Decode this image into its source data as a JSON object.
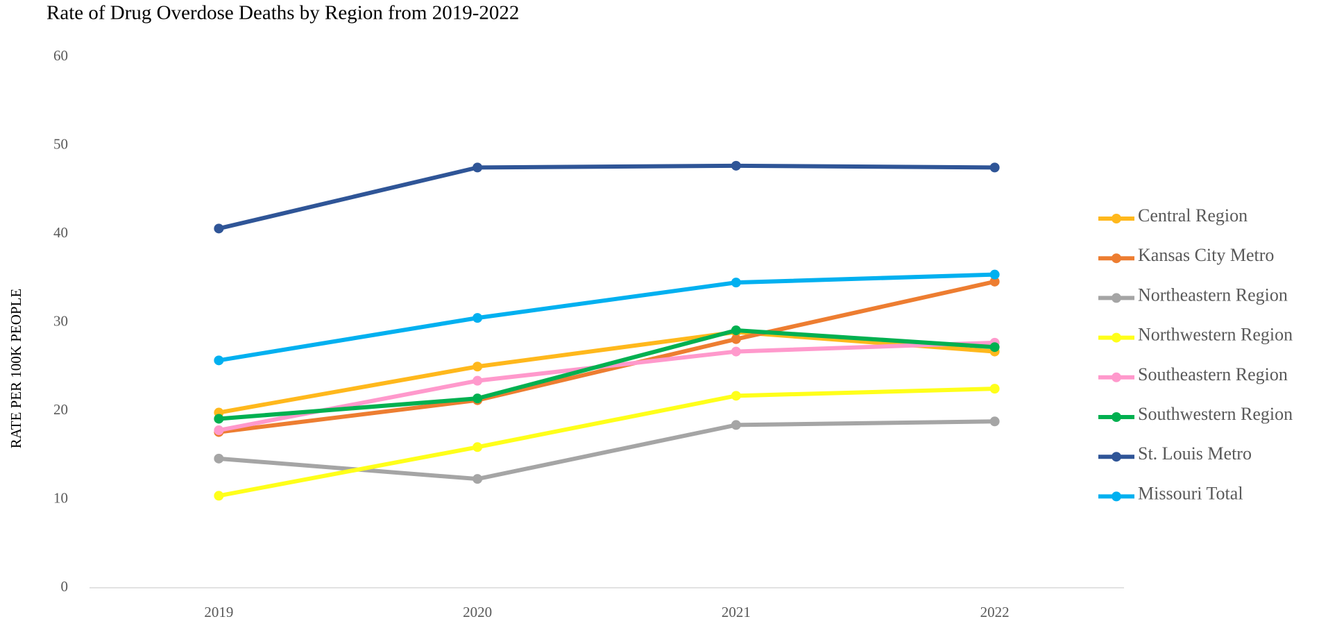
{
  "chart_data": {
    "type": "line",
    "title": "Rate of Drug Overdose Deaths by Region from 2019-2022",
    "y_label": "RATE PER 100K PEOPLE",
    "categories": [
      "2019",
      "2020",
      "2021",
      "2022"
    ],
    "series": [
      {
        "name": "Central Region",
        "color": "#ffb81c",
        "values": [
          19.8,
          25.0,
          28.9,
          26.7
        ]
      },
      {
        "name": "Kansas City Metro",
        "color": "#ed7d31",
        "values": [
          17.6,
          21.2,
          28.1,
          34.6
        ]
      },
      {
        "name": "Northeastern Region",
        "color": "#a5a5a5",
        "values": [
          14.6,
          12.3,
          18.4,
          18.8
        ]
      },
      {
        "name": "Northwestern Region",
        "color": "#ffff1a",
        "values": [
          10.4,
          15.9,
          21.7,
          22.5
        ]
      },
      {
        "name": "Southeastern Region",
        "color": "#ff99cc",
        "values": [
          17.8,
          23.4,
          26.7,
          27.7
        ]
      },
      {
        "name": "Southwestern Region",
        "color": "#00b050",
        "values": [
          19.1,
          21.4,
          29.1,
          27.2
        ]
      },
      {
        "name": "St. Louis Metro",
        "color": "#2f5597",
        "values": [
          40.6,
          47.5,
          47.7,
          47.5
        ]
      },
      {
        "name": "Missouri Total",
        "color": "#00b0f0",
        "values": [
          25.7,
          30.5,
          34.5,
          35.4
        ]
      }
    ],
    "ylim": [
      0,
      60
    ],
    "yticks": [
      0,
      10,
      20,
      30,
      40,
      50,
      60
    ],
    "grid": false,
    "legend": "right"
  }
}
